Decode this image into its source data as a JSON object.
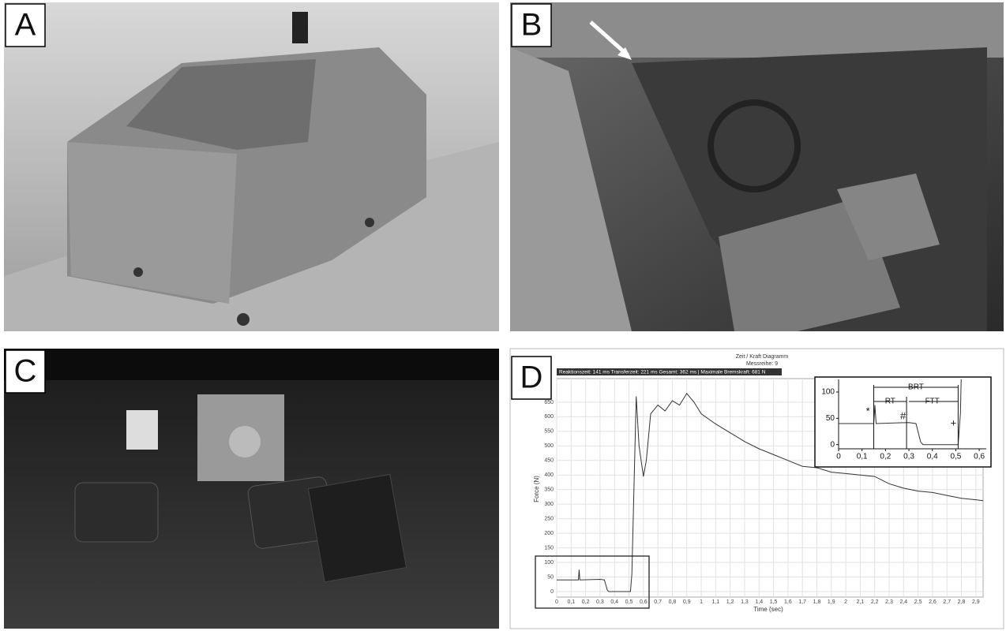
{
  "panels": [
    "A",
    "B",
    "C",
    "D"
  ],
  "chart_data": {
    "type": "line",
    "title": "Zeit / Kraft Diagramm",
    "subtitle": "Messreihe: 9",
    "info": "Reaktionszeit: 141 ms Transferzeit: 221 ms Gesamt: 362 ms | Maximale Bremskraft: 681 N",
    "x_label": "Time (sec)",
    "y_label": "Force (N)",
    "color": "#333333",
    "grid": true,
    "x": [
      0,
      0.15,
      0.155,
      0.16,
      0.3,
      0.33,
      0.35,
      0.36,
      0.5,
      0.51,
      0.52,
      0.55,
      0.57,
      0.6,
      0.62,
      0.65,
      0.7,
      0.75,
      0.8,
      0.85,
      0.9,
      0.95,
      1.0,
      1.1,
      1.2,
      1.3,
      1.4,
      1.5,
      1.6,
      1.7,
      1.8,
      1.9,
      2.0,
      2.1,
      2.2,
      2.3,
      2.4,
      2.5,
      2.6,
      2.7,
      2.8,
      2.9,
      2.95
    ],
    "values": [
      40,
      40,
      75,
      40,
      42,
      40,
      5,
      0,
      0,
      0,
      60,
      670,
      500,
      395,
      450,
      610,
      640,
      620,
      655,
      640,
      680,
      650,
      610,
      575,
      545,
      515,
      490,
      470,
      450,
      430,
      425,
      410,
      405,
      400,
      395,
      370,
      355,
      345,
      340,
      330,
      320,
      315,
      312
    ],
    "xlim": [
      0,
      2.95
    ],
    "ylim": [
      -19,
      731
    ],
    "xticks": [
      0,
      {
        "value": 0.1,
        "label": "0,1"
      },
      {
        "value": 0.2,
        "label": "0,2"
      },
      {
        "value": 0.3,
        "label": "0,3"
      },
      {
        "value": 0.4,
        "label": "0,4"
      },
      {
        "value": 0.5,
        "label": "0,5"
      },
      {
        "value": 0.6,
        "label": "0,6"
      },
      {
        "value": 0.7,
        "label": "0,7"
      },
      {
        "value": 0.8,
        "label": "0,8"
      },
      {
        "value": 0.9,
        "label": "0,9"
      },
      1,
      {
        "value": 1.1,
        "label": "1,1"
      },
      {
        "value": 1.2,
        "label": "1,2"
      },
      {
        "value": 1.3,
        "label": "1,3"
      },
      {
        "value": 1.4,
        "label": "1,4"
      },
      {
        "value": 1.5,
        "label": "1,5"
      },
      {
        "value": 1.6,
        "label": "1,6"
      },
      {
        "value": 1.7,
        "label": "1,7"
      },
      {
        "value": 1.8,
        "label": "1,8"
      },
      {
        "value": 1.9,
        "label": "1,9"
      },
      2,
      {
        "value": 2.1,
        "label": "2,1"
      },
      {
        "value": 2.2,
        "label": "2,2"
      },
      {
        "value": 2.3,
        "label": "2,3"
      },
      {
        "value": 2.4,
        "label": "2,4"
      },
      {
        "value": 2.5,
        "label": "2,5"
      },
      {
        "value": 2.6,
        "label": "2,6"
      },
      {
        "value": 2.7,
        "label": "2,7"
      },
      {
        "value": 2.8,
        "label": "2,8"
      },
      {
        "value": 2.9,
        "label": "2,9"
      }
    ],
    "yticks": [
      0,
      50,
      100,
      150,
      200,
      250,
      300,
      350,
      400,
      450,
      500,
      550,
      600,
      650
    ],
    "inset": {
      "xlim": [
        0,
        0.63
      ],
      "ylim": [
        -8,
        124
      ],
      "xticks": [
        0,
        {
          "value": 0.1,
          "label": "0,1"
        },
        {
          "value": 0.2,
          "label": "0,2"
        },
        {
          "value": 0.3,
          "label": "0,3"
        },
        {
          "value": 0.4,
          "label": "0,4"
        },
        {
          "value": 0.5,
          "label": "0,5"
        },
        {
          "value": 0.6,
          "label": "0,6"
        }
      ],
      "yticks": [
        0,
        50,
        100
      ],
      "annotations": [
        "BRT",
        "RT",
        "FTT",
        "*",
        "#",
        "+"
      ]
    }
  }
}
